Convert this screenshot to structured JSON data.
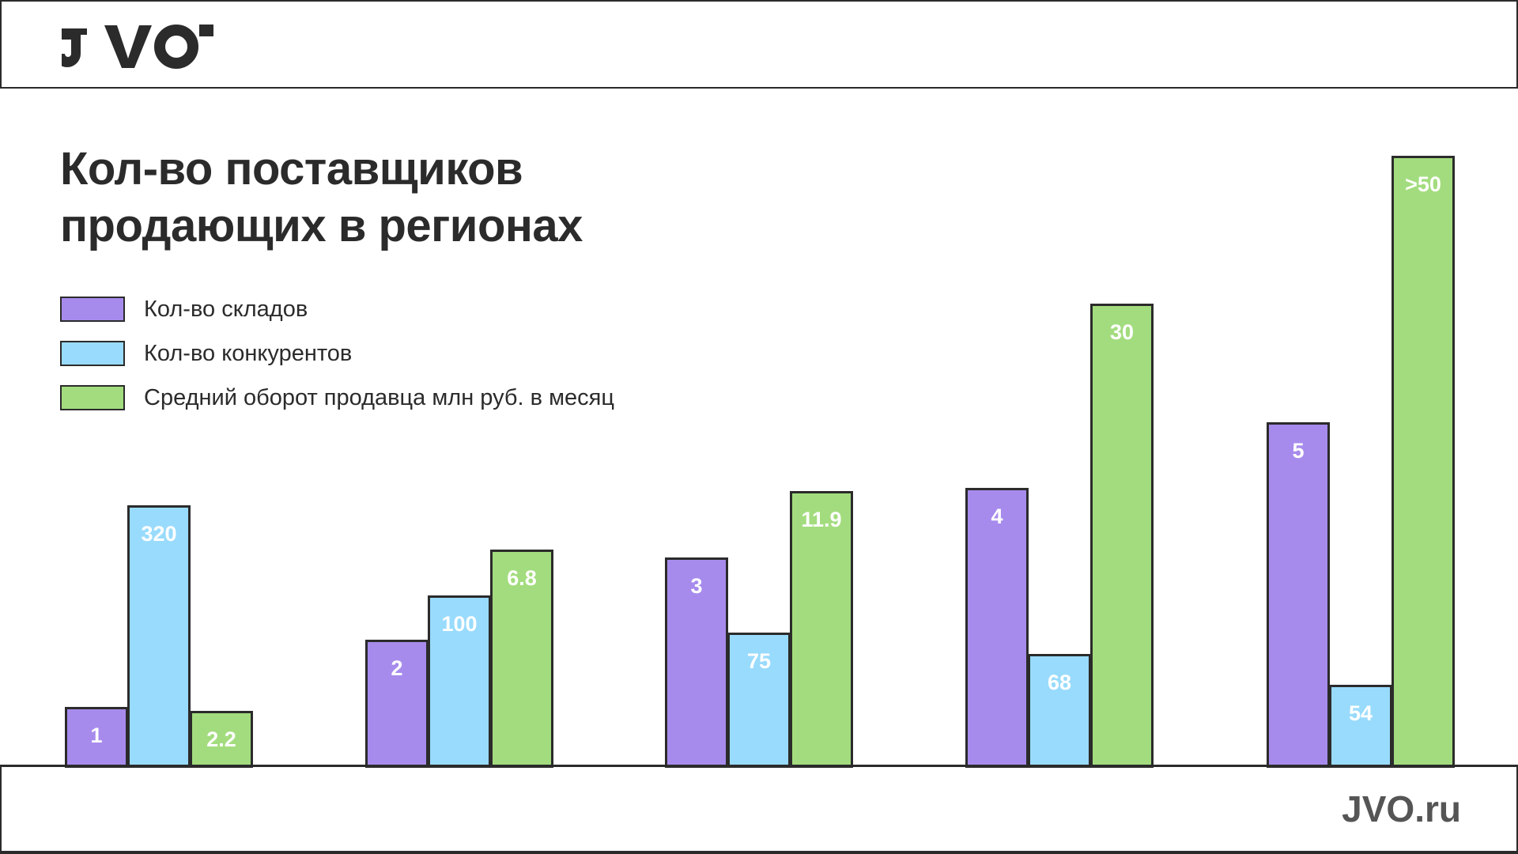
{
  "header": {
    "logo_text": "JVO"
  },
  "footer": {
    "url": "JVO.ru"
  },
  "chart_data": {
    "type": "bar",
    "title": "Кол-во поставщиков продающих в регионах",
    "title_lines": [
      "Кол-во поставщиков",
      "продающих в регионах"
    ],
    "categories": [
      "",
      "",
      "",
      "",
      ""
    ],
    "series": [
      {
        "name": "Кол-во складов",
        "color": "#a78bec",
        "values": [
          1,
          2,
          3,
          4,
          5
        ],
        "labels": [
          "1",
          "2",
          "3",
          "4",
          "5"
        ]
      },
      {
        "name": "Кол-во конкурентов",
        "color": "#99dbfc",
        "values": [
          320,
          100,
          75,
          68,
          54
        ],
        "labels": [
          "320",
          "100",
          "75",
          "68",
          "54"
        ]
      },
      {
        "name": "Средний оборот продавца млн руб. в месяц",
        "color": "#a3dc7e",
        "values": [
          2.2,
          6.8,
          11.9,
          30,
          50
        ],
        "labels": [
          "2.2",
          "6.8",
          "11.9",
          "30",
          ">50"
        ]
      }
    ],
    "legend": "top-left",
    "grid": false,
    "axes_shown": false
  }
}
